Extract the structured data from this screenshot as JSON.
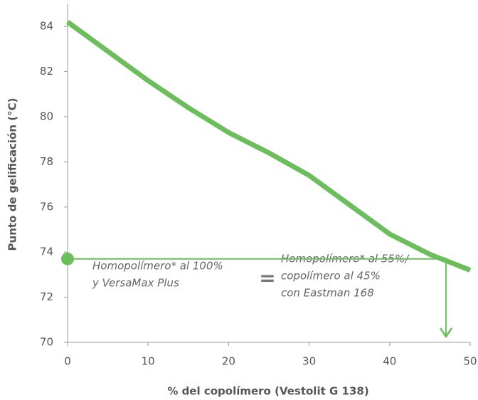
{
  "chart_data": {
    "type": "line",
    "x_label": "% del copolímero (Vestolit G 138)",
    "y_label": "Punto de gelificación (°C)",
    "x": [
      0,
      5,
      10,
      15,
      20,
      25,
      30,
      35,
      40,
      45,
      50
    ],
    "series": [
      {
        "name": "Punto de gelificación",
        "color": "#6cbd5c",
        "values": [
          84.2,
          82.9,
          81.6,
          80.4,
          79.3,
          78.4,
          77.4,
          76.1,
          74.8,
          73.9,
          73.2
        ]
      }
    ],
    "xlim": [
      0,
      50
    ],
    "xticks": [
      0,
      10,
      20,
      30,
      40,
      50
    ],
    "ylim": [
      70,
      85
    ],
    "yticks": [
      70,
      72,
      74,
      76,
      78,
      80,
      82,
      84
    ],
    "reference": {
      "x": 47,
      "y": 73.7
    },
    "annotations": {
      "left": [
        "Homopolímero* al 100%",
        "y VersaMax Plus"
      ],
      "equals": "=",
      "right": [
        "Homopolímero* al 55%/",
        "copolímero al 45%",
        "con Eastman 168"
      ]
    }
  }
}
